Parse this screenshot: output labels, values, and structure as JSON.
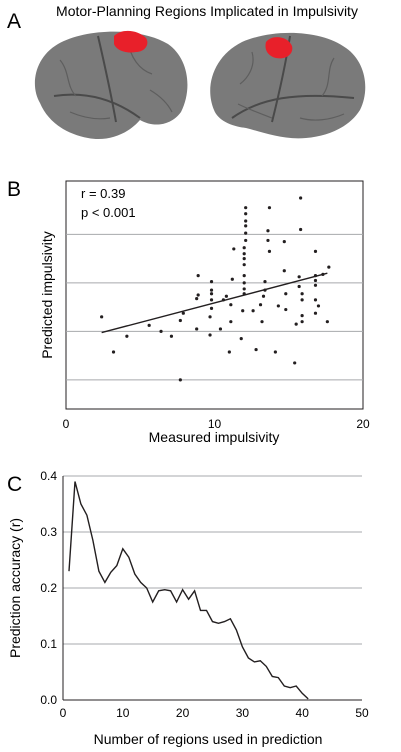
{
  "panels": {
    "a": {
      "letter": "A",
      "title": "Motor-Planning Regions Implicated in Impulsivity",
      "highlight_color": "#e8202a",
      "brain_color": "#7a7a7a"
    },
    "b": {
      "letter": "B",
      "r_text": "r = 0.39",
      "p_text": "p < 0.001"
    },
    "c": {
      "letter": "C"
    }
  },
  "chart_data": [
    {
      "type": "scatter",
      "xlabel": "Measured impulsivity",
      "ylabel": "Predicted impulsivity",
      "xlim": [
        0,
        20
      ],
      "xticks": [
        0,
        10,
        20
      ],
      "ylim": [
        -4.2,
        5.2
      ],
      "grid": "horizontal",
      "annotations": [
        "r = 0.39",
        "p < 0.001"
      ],
      "fit_line": {
        "x": [
          2.4,
          17.6
        ],
        "y": [
          -1.05,
          1.4
        ]
      },
      "points": [
        [
          2.4,
          -0.4
        ],
        [
          3.2,
          -1.85
        ],
        [
          4.1,
          -1.2
        ],
        [
          5.6,
          -0.75
        ],
        [
          6.4,
          -1.0
        ],
        [
          7.1,
          -1.2
        ],
        [
          7.7,
          -3.0
        ],
        [
          7.7,
          -0.55
        ],
        [
          7.9,
          -0.25
        ],
        [
          8.8,
          -0.9
        ],
        [
          8.8,
          0.35
        ],
        [
          8.9,
          1.3
        ],
        [
          8.9,
          0.5
        ],
        [
          9.7,
          -0.4
        ],
        [
          9.7,
          -1.15
        ],
        [
          9.8,
          -0.05
        ],
        [
          9.8,
          0.3
        ],
        [
          9.8,
          0.55
        ],
        [
          9.8,
          0.7
        ],
        [
          9.8,
          1.05
        ],
        [
          10.4,
          -0.9
        ],
        [
          10.6,
          0.3
        ],
        [
          10.8,
          0.45
        ],
        [
          11.0,
          -1.85
        ],
        [
          11.1,
          -0.6
        ],
        [
          11.1,
          0.1
        ],
        [
          11.2,
          1.15
        ],
        [
          11.3,
          2.4
        ],
        [
          11.8,
          -1.3
        ],
        [
          11.9,
          -0.15
        ],
        [
          12.0,
          0.55
        ],
        [
          12.0,
          0.75
        ],
        [
          12.0,
          1.0
        ],
        [
          12.0,
          1.3
        ],
        [
          12.0,
          1.75
        ],
        [
          12.0,
          2.0
        ],
        [
          12.0,
          2.2
        ],
        [
          12.0,
          2.45
        ],
        [
          12.1,
          2.75
        ],
        [
          12.1,
          3.05
        ],
        [
          12.1,
          3.35
        ],
        [
          12.1,
          3.55
        ],
        [
          12.1,
          3.85
        ],
        [
          12.1,
          4.1
        ],
        [
          12.6,
          -0.15
        ],
        [
          12.8,
          -1.75
        ],
        [
          13.1,
          0.1
        ],
        [
          13.2,
          -0.6
        ],
        [
          13.3,
          0.45
        ],
        [
          13.4,
          0.7
        ],
        [
          13.4,
          1.05
        ],
        [
          13.6,
          3.15
        ],
        [
          13.6,
          2.75
        ],
        [
          13.7,
          2.3
        ],
        [
          13.7,
          4.1
        ],
        [
          14.1,
          -1.85
        ],
        [
          14.3,
          0.05
        ],
        [
          14.7,
          1.5
        ],
        [
          14.7,
          2.7
        ],
        [
          14.8,
          0.55
        ],
        [
          14.8,
          -0.1
        ],
        [
          15.4,
          -2.3
        ],
        [
          15.5,
          -0.7
        ],
        [
          15.7,
          0.85
        ],
        [
          15.7,
          1.25
        ],
        [
          15.8,
          4.5
        ],
        [
          15.8,
          3.2
        ],
        [
          15.9,
          -0.35
        ],
        [
          15.9,
          -0.6
        ],
        [
          15.9,
          0.3
        ],
        [
          15.9,
          0.55
        ],
        [
          16.8,
          -0.25
        ],
        [
          16.8,
          0.3
        ],
        [
          16.8,
          0.9
        ],
        [
          16.8,
          1.1
        ],
        [
          16.8,
          1.3
        ],
        [
          16.8,
          2.3
        ],
        [
          17.0,
          0.05
        ],
        [
          17.3,
          1.35
        ],
        [
          17.6,
          -0.6
        ],
        [
          17.7,
          1.65
        ]
      ]
    },
    {
      "type": "line",
      "xlabel": "Number of regions used in prediction",
      "ylabel": "Prediction accuracy (r)",
      "xlim": [
        0,
        50
      ],
      "ylim": [
        0,
        0.4
      ],
      "xticks": [
        0,
        10,
        20,
        30,
        40,
        50
      ],
      "yticks": [
        0.0,
        0.1,
        0.2,
        0.3,
        0.4
      ],
      "grid": "horizontal",
      "x": [
        1,
        2,
        3,
        4,
        5,
        6,
        7,
        8,
        9,
        10,
        11,
        12,
        13,
        14,
        15,
        16,
        17,
        18,
        19,
        20,
        21,
        22,
        23,
        24,
        25,
        26,
        27,
        28,
        29,
        30,
        31,
        32,
        33,
        34,
        35,
        36,
        37,
        38,
        39,
        40,
        41
      ],
      "y": [
        0.23,
        0.39,
        0.35,
        0.33,
        0.285,
        0.23,
        0.21,
        0.228,
        0.24,
        0.27,
        0.255,
        0.225,
        0.21,
        0.2,
        0.175,
        0.195,
        0.197,
        0.195,
        0.175,
        0.197,
        0.18,
        0.195,
        0.16,
        0.16,
        0.14,
        0.137,
        0.14,
        0.145,
        0.125,
        0.095,
        0.075,
        0.068,
        0.07,
        0.06,
        0.042,
        0.04,
        0.025,
        0.022,
        0.025,
        0.012,
        0.002
      ]
    }
  ]
}
